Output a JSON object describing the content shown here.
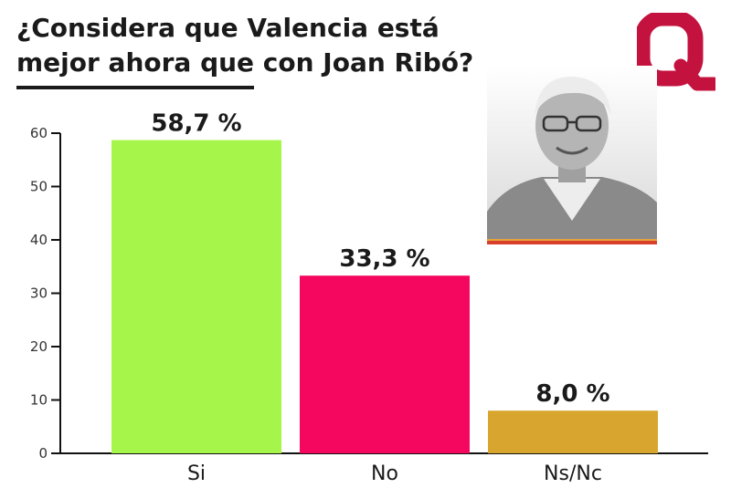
{
  "title": "¿Considera que Valencia está mejor ahora que con Joan Ribó?",
  "chart_data": {
    "type": "bar",
    "categories": [
      "Si",
      "No",
      "Ns/Nc"
    ],
    "values": [
      58.7,
      33.3,
      8.0
    ],
    "value_labels": [
      "58,7 %",
      "33,3 %",
      "8,0 %"
    ],
    "colors": [
      "#a6f54a",
      "#f5075f",
      "#d8a62e"
    ],
    "ylim": [
      0,
      60
    ],
    "yticks": [
      0,
      10,
      20,
      30,
      40,
      50,
      60
    ],
    "grid": false,
    "legend": "none"
  },
  "brand_color": "#c4123f",
  "icons": {
    "logo": "q-logo",
    "photo": "portrait-photo"
  }
}
